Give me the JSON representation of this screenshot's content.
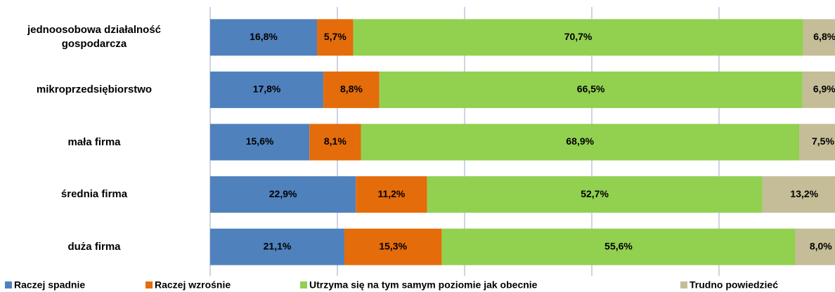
{
  "chart_data": {
    "type": "stacked_bar_horizontal",
    "categories": [
      "jednoosobowa działalność gospodarcza",
      "mikroprzedsiębiorstwo",
      "mała firma",
      "średnia firma",
      "duża firma"
    ],
    "series": [
      {
        "name": "Raczej spadnie",
        "color": "#4f81bd",
        "values": [
          16.8,
          17.8,
          15.6,
          22.9,
          21.1
        ],
        "value_labels": [
          "16,8%",
          "17,8%",
          "15,6%",
          "22,9%",
          "21,1%"
        ]
      },
      {
        "name": "Raczej wzrośnie",
        "color": "#e46c0a",
        "values": [
          5.7,
          8.8,
          8.1,
          11.2,
          15.3
        ],
        "value_labels": [
          "5,7%",
          "8,8%",
          "8,1%",
          "11,2%",
          "15,3%"
        ]
      },
      {
        "name": "Utrzyma się na tym samym poziomie jak obecnie",
        "color": "#92d050",
        "values": [
          70.7,
          66.5,
          68.9,
          52.7,
          55.6
        ],
        "value_labels": [
          "70,7%",
          "66,5%",
          "68,9%",
          "52,7%",
          "55,6%"
        ]
      },
      {
        "name": "Trudno powiedzieć",
        "color": "#c4bd97",
        "values": [
          6.8,
          6.9,
          7.5,
          13.2,
          8.0
        ],
        "value_labels": [
          "6,8%",
          "6,9%",
          "7,5%",
          "13,2%",
          "8,0%"
        ]
      }
    ],
    "xlim": [
      0,
      100
    ],
    "xticks": [
      0,
      20,
      40,
      60,
      80,
      100
    ],
    "grid": true,
    "legend": "bottom"
  }
}
